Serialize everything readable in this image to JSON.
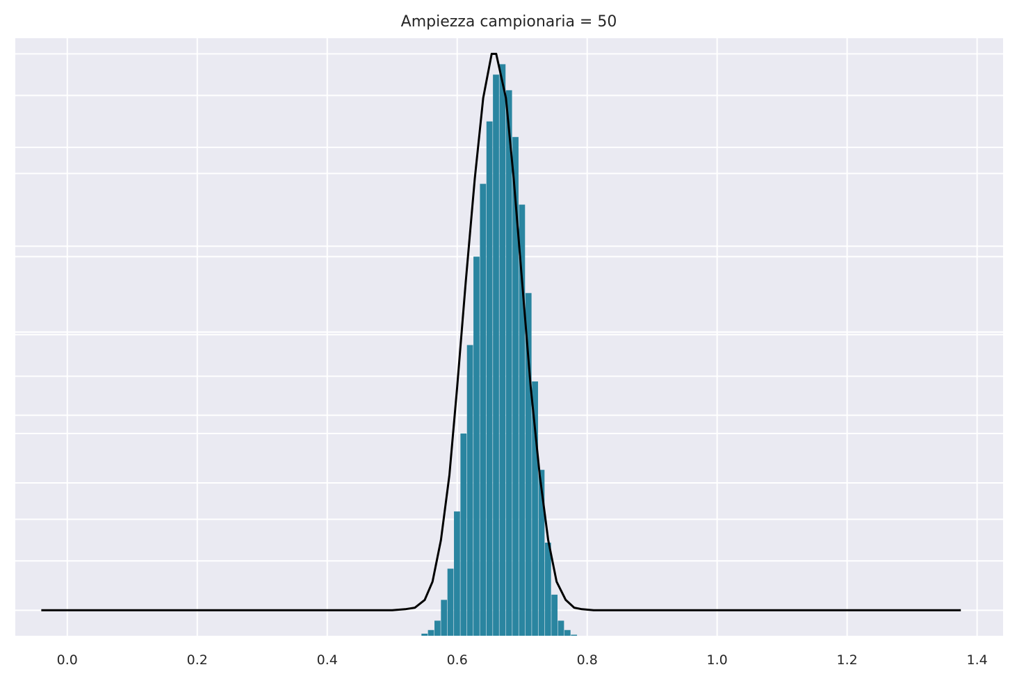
{
  "chart_data": {
    "type": "bar",
    "title": "Ampiezza campionaria = 50",
    "xlabel": "",
    "ylabel": "",
    "xlim": [
      -0.08,
      1.44
    ],
    "ylim": [
      -0.49,
      11.0
    ],
    "grid": true,
    "x_ticks": [
      {
        "value": 0.0,
        "label": "0.0"
      },
      {
        "value": 0.2,
        "label": "0.2"
      },
      {
        "value": 0.4,
        "label": "0.4"
      },
      {
        "value": 0.6,
        "label": "0.6"
      },
      {
        "value": 0.8,
        "label": "0.8"
      },
      {
        "value": 1.0,
        "label": "1.0"
      },
      {
        "value": 1.2,
        "label": "1.2"
      },
      {
        "value": 1.4,
        "label": "1.4"
      }
    ],
    "y_grid_values": [
      0,
      0.95,
      1.75,
      2.45,
      3.4,
      3.75,
      4.5,
      5.3,
      5.35,
      6.8,
      7.0,
      8.4,
      8.9,
      9.9,
      10.7
    ],
    "histogram": {
      "color": "#2a85a0",
      "x": [
        0.55,
        0.56,
        0.57,
        0.58,
        0.59,
        0.6,
        0.61,
        0.62,
        0.63,
        0.64,
        0.65,
        0.66,
        0.67,
        0.68,
        0.69,
        0.7,
        0.71,
        0.72,
        0.73,
        0.74,
        0.75,
        0.76,
        0.77,
        0.78
      ],
      "values": [
        -0.45,
        -0.38,
        -0.2,
        0.2,
        0.8,
        1.9,
        3.4,
        5.1,
        6.8,
        8.2,
        9.4,
        10.3,
        10.5,
        10.0,
        9.1,
        7.8,
        6.1,
        4.4,
        2.7,
        1.3,
        0.3,
        -0.2,
        -0.38,
        -0.47
      ]
    },
    "series": [
      {
        "type": "line",
        "color": "#000000",
        "x": [
          -0.04,
          0.44,
          0.5,
          0.52,
          0.535,
          0.55,
          0.562,
          0.575,
          0.588,
          0.6,
          0.613,
          0.627,
          0.64,
          0.653,
          0.66,
          0.675,
          0.687,
          0.7,
          0.713,
          0.727,
          0.74,
          0.753,
          0.767,
          0.78,
          0.792,
          0.81,
          0.85,
          1.375
        ],
        "values": [
          0.0,
          0.0,
          0.0,
          0.02,
          0.05,
          0.2,
          0.55,
          1.35,
          2.6,
          4.3,
          6.3,
          8.3,
          9.85,
          10.7,
          10.7,
          9.85,
          8.3,
          6.3,
          4.3,
          2.6,
          1.35,
          0.55,
          0.2,
          0.05,
          0.02,
          0.0,
          0.0,
          0.0
        ]
      }
    ]
  }
}
